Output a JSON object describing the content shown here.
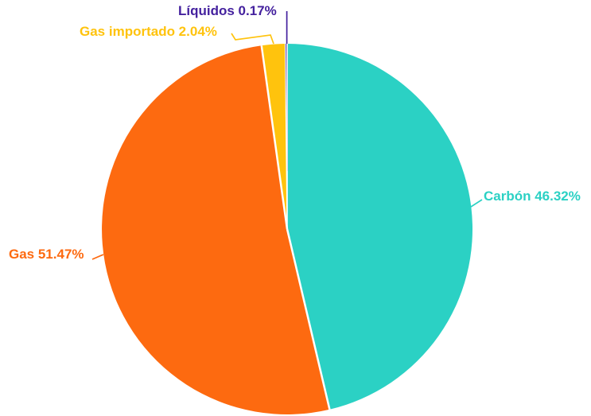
{
  "chart_data": {
    "type": "pie",
    "title": "",
    "unit": "%",
    "background": "#FFFFFF",
    "separator_color": "#FFFFFF",
    "start_angle_deg": 0,
    "direction": "clockwise",
    "labels_position": "outside-with-leader-lines",
    "slices": [
      {
        "id": "carbon",
        "label": "Carbón",
        "value": 46.32,
        "display": "Carbón 46.32%",
        "color": "#2BD1C4"
      },
      {
        "id": "gas",
        "label": "Gas",
        "value": 51.47,
        "display": "Gas 51.47%",
        "color": "#FD6A10"
      },
      {
        "id": "gas_importado",
        "label": "Gas importado",
        "value": 2.04,
        "display": "Gas importado 2.04%",
        "color": "#FFC30D"
      },
      {
        "id": "liquidos",
        "label": "Líquidos",
        "value": 0.17,
        "display": "Líquidos 0.17%",
        "color": "#44219E"
      }
    ]
  }
}
